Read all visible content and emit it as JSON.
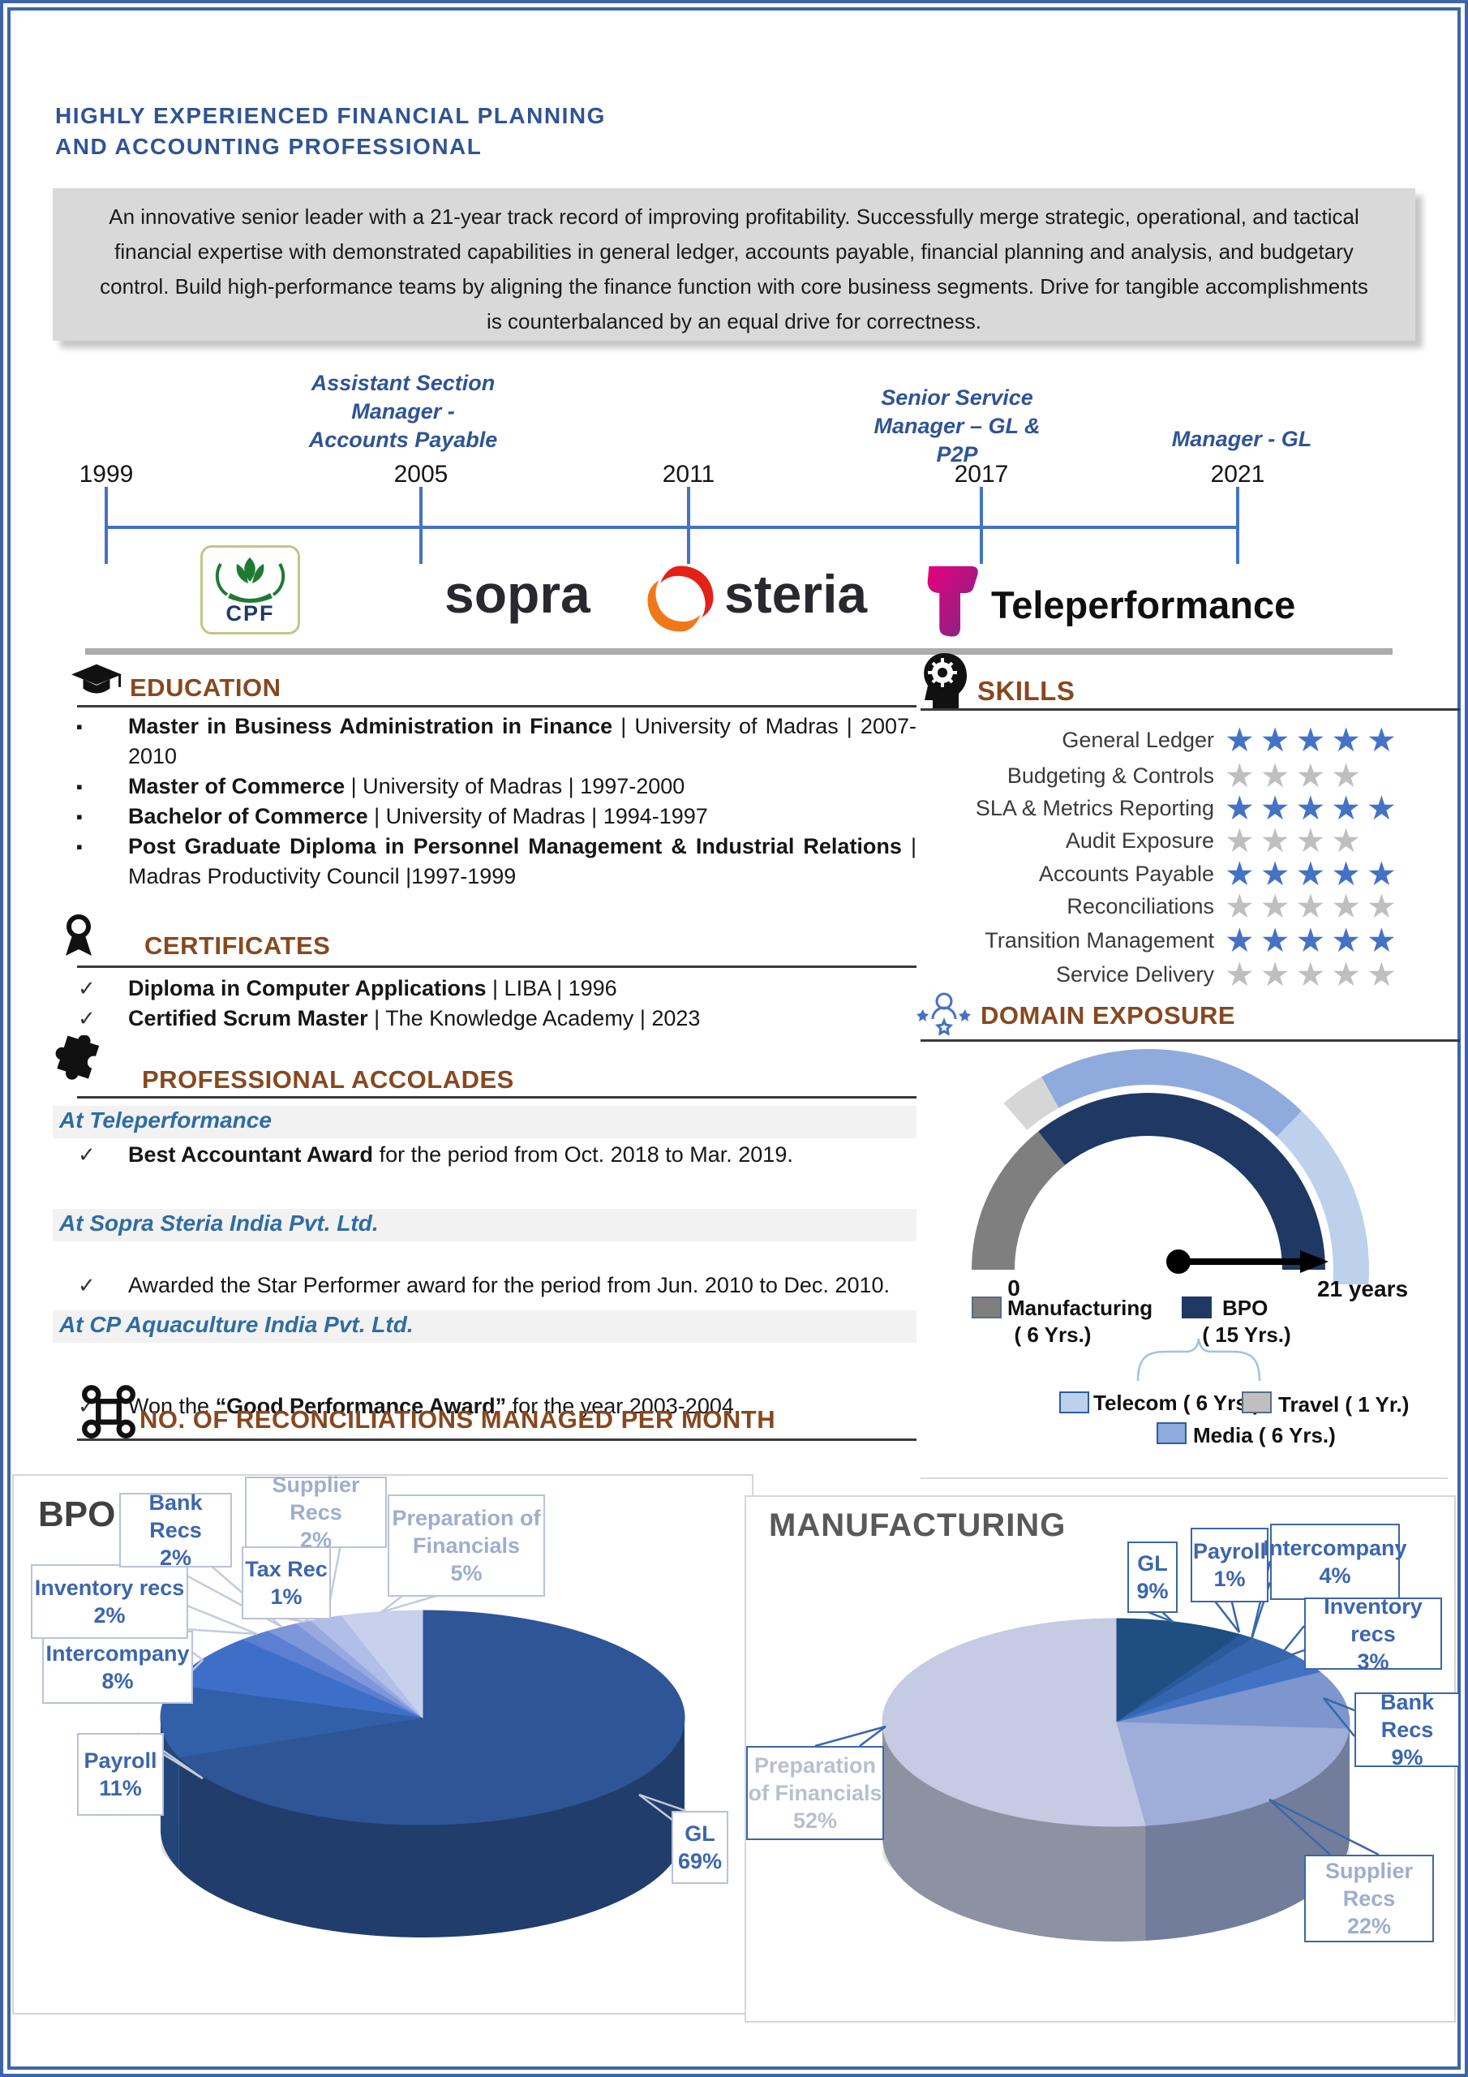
{
  "header": {
    "title_line1": "HIGHLY EXPERIENCED FINANCIAL PLANNING",
    "title_line2": "AND ACCOUNTING PROFESSIONAL"
  },
  "summary_lines": [
    "An innovative senior leader with a 21-year track record of improving profitability. Successfully merge strategic, operational, and tactical",
    "financial expertise with demonstrated capabilities in general ledger, accounts payable, financial planning and analysis, and budgetary",
    "control. Build high-performance teams by aligning the finance function with core business segments. Drive for tangible accomplishments",
    "is counterbalanced by an equal drive for correctness."
  ],
  "timeline": {
    "years": [
      "1999",
      "2005",
      "2011",
      "2017",
      "2021"
    ],
    "roles": [
      {
        "lines": [
          "Assistant Section",
          "Manager -",
          "Accounts Payable"
        ]
      },
      {
        "lines": [
          "Senior Service",
          "Manager – GL &",
          "P2P"
        ]
      },
      {
        "lines": [
          "Manager - GL"
        ]
      }
    ],
    "companies": [
      "CPF",
      "sopra",
      "steria",
      "Teleperformance"
    ]
  },
  "education": {
    "heading": "EDUCATION",
    "items": [
      {
        "lead": "Master in Business Administration in Finance",
        "rest": " | University of Madras | 2007-2010"
      },
      {
        "lead": "Master of Commerce",
        "rest": " | University of Madras | 1997-2000"
      },
      {
        "lead": "Bachelor of Commerce",
        "rest": " | University of Madras | 1994-1997"
      },
      {
        "lead": "Post Graduate Diploma in Personnel Management & Industrial Relations",
        "rest": " | Madras Productivity Council |1997-1999"
      }
    ]
  },
  "certificates": {
    "heading": "CERTIFICATES",
    "items": [
      {
        "lead": "Diploma in Computer Applications",
        "rest": " | LIBA | 1996"
      },
      {
        "lead": "Certified Scrum Master",
        "rest": " | The Knowledge Academy | 2023"
      }
    ]
  },
  "accolades": {
    "heading": "PROFESSIONAL ACCOLADES",
    "items": [
      {
        "company": "At Teleperformance",
        "parts": [
          {
            "t": "Best Accountant Award",
            "b": true
          },
          {
            "t": " for the period from Oct. 2018 to Mar. 2019.",
            "b": false
          }
        ]
      },
      {
        "company": "At Sopra Steria India Pvt. Ltd.",
        "parts": [
          {
            "t": "Awarded the Star Performer award for the period from Jun. 2010 to Dec. 2010.",
            "b": false
          }
        ]
      },
      {
        "company": "At CP Aquaculture India Pvt. Ltd.",
        "parts": [
          {
            "t": "Won the ",
            "b": false
          },
          {
            "t": "“Good Performance Award”",
            "b": true
          },
          {
            "t": " for the year 2003-2004.",
            "b": false
          }
        ]
      }
    ]
  },
  "reconciliations_heading": "NO. OF RECONCILIATIONS MANAGED PER MONTH",
  "skills_heading": "SKILLS",
  "domain_heading": "DOMAIN EXPOSURE",
  "chart_data": [
    {
      "type": "rating",
      "title": "SKILLS",
      "categories": [
        "General Ledger",
        "Budgeting & Controls",
        "SLA & Metrics Reporting",
        "Audit Exposure",
        "Accounts Payable",
        "Reconciliations",
        "Transition Management",
        "Service Delivery"
      ],
      "values": [
        5,
        4,
        5,
        4,
        5,
        5,
        5,
        5
      ],
      "filled": [
        true,
        false,
        true,
        false,
        true,
        false,
        true,
        false
      ],
      "filled_color": "#4472C4",
      "empty_color": "#BFBFBF"
    },
    {
      "type": "gauge",
      "title": "DOMAIN EXPOSURE",
      "min_label": "0",
      "max_label": "21 years",
      "total_years": 21,
      "inner_segments": [
        {
          "name": "Manufacturing",
          "years": 6,
          "color": "#7F7F7F",
          "legend": "( 6 Yrs.)"
        },
        {
          "name": "BPO",
          "years": 15,
          "color": "#1F3864",
          "legend": "( 15 Yrs.)"
        }
      ],
      "outer_segments": [
        {
          "name": "Travel",
          "years": 1,
          "color": "#D6D6D6",
          "legend": "Travel ( 1 Yr.)"
        },
        {
          "name": "Media",
          "years": 6,
          "color": "#8FAADC",
          "legend": "Media ( 6 Yrs.)"
        },
        {
          "name": "Telecom",
          "years": 6,
          "color": "#BDD0EC",
          "legend": "Telecom ( 6 Yrs.)"
        }
      ]
    },
    {
      "type": "pie",
      "title": "BPO",
      "labels": [
        "GL",
        "Payroll",
        "Intercompany",
        "Inventory recs",
        "Bank Recs",
        "Tax Rec",
        "Supplier Recs",
        "Preparation of Financials"
      ],
      "values": [
        69,
        11,
        8,
        2,
        2,
        1,
        2,
        5
      ]
    },
    {
      "type": "pie",
      "title": "MANUFACTURING",
      "labels": [
        "GL",
        "Payroll",
        "Intercompany",
        "Inventory recs",
        "Bank Recs",
        "Supplier Recs",
        "Preparation of Financials"
      ],
      "values": [
        9,
        1,
        4,
        3,
        9,
        22,
        52
      ]
    }
  ]
}
